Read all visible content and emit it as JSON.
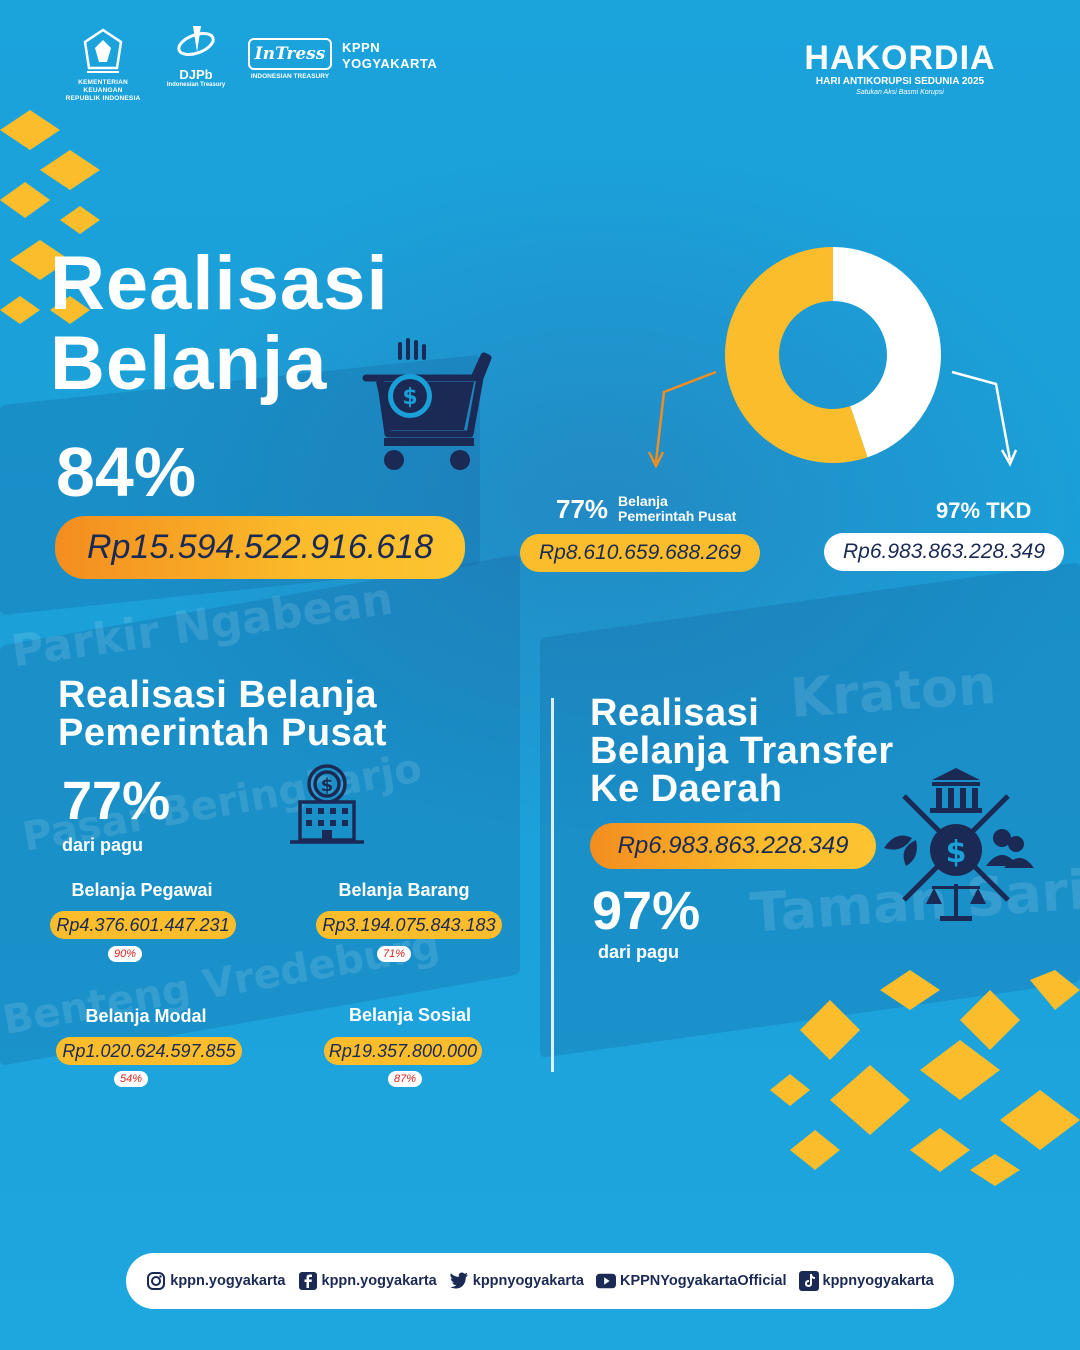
{
  "header": {
    "kemenkeu_name": "KEMENTERIAN KEUANGAN",
    "kemenkeu_sub": "REPUBLIK INDONESIA",
    "djpb_name": "DJPb",
    "djpb_sub": "Indonesian Treasury",
    "intress_name": "InTress",
    "intress_sub": "INDONESIAN TREASURY",
    "kppn_line1": "KPPN",
    "kppn_line2": "YOGYAKARTA",
    "hakordia_title": "HAKORDIA",
    "hakordia_sub": "HARI ANTIKORUPSI SEDUNIA 2025",
    "hakordia_tagline": "Satukan Aksi Basmi Korupsi"
  },
  "main": {
    "title_line1": "Realisasi",
    "title_line2": "Belanja",
    "percent": "84%",
    "amount": "Rp15.594.522.916.618"
  },
  "donut": {
    "pusat_percent": "77%",
    "pusat_label_line1": "Belanja",
    "pusat_label_line2": "Pemerintah Pusat",
    "pusat_amount": "Rp8.610.659.688.269",
    "tkd_label": "97% TKD",
    "tkd_amount": "Rp6.983.863.228.349",
    "share_pusat": 0.552,
    "share_tkd": 0.448,
    "color_pusat": "#fbbd2b",
    "color_tkd": "#ffffff"
  },
  "pusat": {
    "title_line1": "Realisasi Belanja",
    "title_line2": "Pemerintah Pusat",
    "percent": "77%",
    "pagu_label": "dari pagu",
    "items": [
      {
        "label": "Belanja Pegawai",
        "amount": "Rp4.376.601.447.231",
        "percent": "90%"
      },
      {
        "label": "Belanja Barang",
        "amount": "Rp3.194.075.843.183",
        "percent": "71%"
      },
      {
        "label": "Belanja Modal",
        "amount": "Rp1.020.624.597.855",
        "percent": "54%"
      },
      {
        "label": "Belanja Sosial",
        "amount": "Rp19.357.800.000",
        "percent": "87%"
      }
    ]
  },
  "tkd": {
    "title_line1": "Realisasi",
    "title_line2": "Belanja Transfer",
    "title_line3": "Ke Daerah",
    "amount": "Rp6.983.863.228.349",
    "percent": "97%",
    "pagu_label": "dari pagu"
  },
  "footer": {
    "instagram": "kppn.yogyakarta",
    "facebook": "kppn.yogyakarta",
    "twitter": "kppnyogyakarta",
    "youtube": "KPPNYogyakartaOfficial",
    "tiktok": "kppnyogyakarta"
  },
  "colors": {
    "background": "#1aa0d9",
    "accent_yellow": "#fbbd2b",
    "accent_orange": "#f38d1f",
    "navy": "#1b2a55",
    "badge_red": "#d3261e"
  }
}
